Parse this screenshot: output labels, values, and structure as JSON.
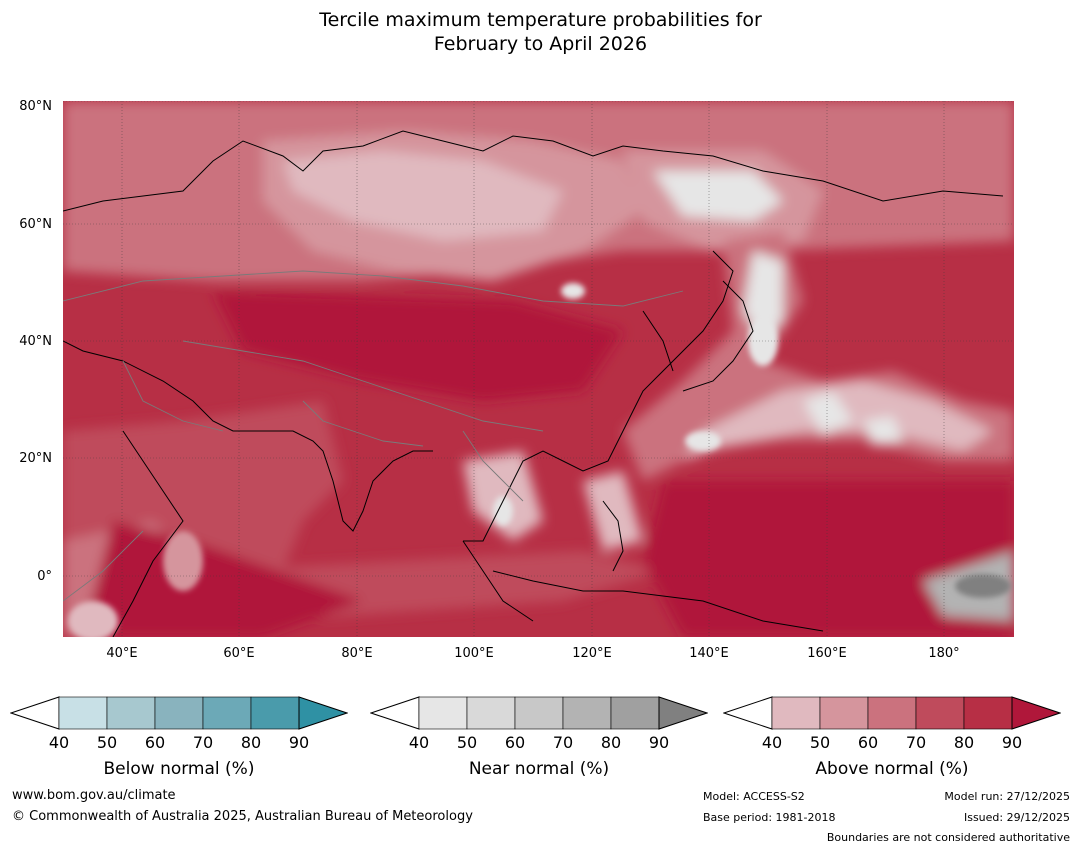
{
  "title": {
    "line1": "Tercile maximum temperature probabilities for",
    "line2": "February to April 2026"
  },
  "map": {
    "lat_labels": [
      "80°N",
      "60°N",
      "40°N",
      "20°N",
      "0°"
    ],
    "lon_labels": [
      "40°E",
      "60°E",
      "80°E",
      "100°E",
      "120°E",
      "140°E",
      "160°E",
      "180°"
    ],
    "extent": {
      "lon_min": 30,
      "lon_max": 192,
      "lat_min": -10,
      "lat_max": 81
    },
    "dominant_category": "Above normal",
    "colors": {
      "above": [
        "#ffffff",
        "#e0b9bf",
        "#d5959d",
        "#cb727e",
        "#bf4b5c",
        "#b72f45",
        "#b0173a"
      ],
      "near": [
        "#ffffff",
        "#e6e6e6",
        "#d9d9d9",
        "#c8c8c8",
        "#b3b3b3",
        "#a0a0a0",
        "#808080"
      ],
      "below": [
        "#ffffff",
        "#c8e0e6",
        "#a7c8cf",
        "#89b3be",
        "#6ca9b7",
        "#4a9bab",
        "#2f91a4"
      ]
    }
  },
  "legends": [
    {
      "title": "Below normal (%)",
      "ticks": [
        "40",
        "50",
        "60",
        "70",
        "80",
        "90"
      ]
    },
    {
      "title": "Near normal (%)",
      "ticks": [
        "40",
        "50",
        "60",
        "70",
        "80",
        "90"
      ]
    },
    {
      "title": "Above normal (%)",
      "ticks": [
        "40",
        "50",
        "60",
        "70",
        "80",
        "90"
      ]
    }
  ],
  "footer": {
    "website": "www.bom.gov.au/climate",
    "copyright": "© Commonwealth of Australia 2025, Australian Bureau of Meteorology",
    "model": "Model: ACCESS-S2",
    "base_period": "Base period: 1981-2018",
    "model_run": "Model run: 27/12/2025",
    "issued": "Issued: 29/12/2025",
    "disclaimer": "Boundaries are not considered authoritative"
  }
}
